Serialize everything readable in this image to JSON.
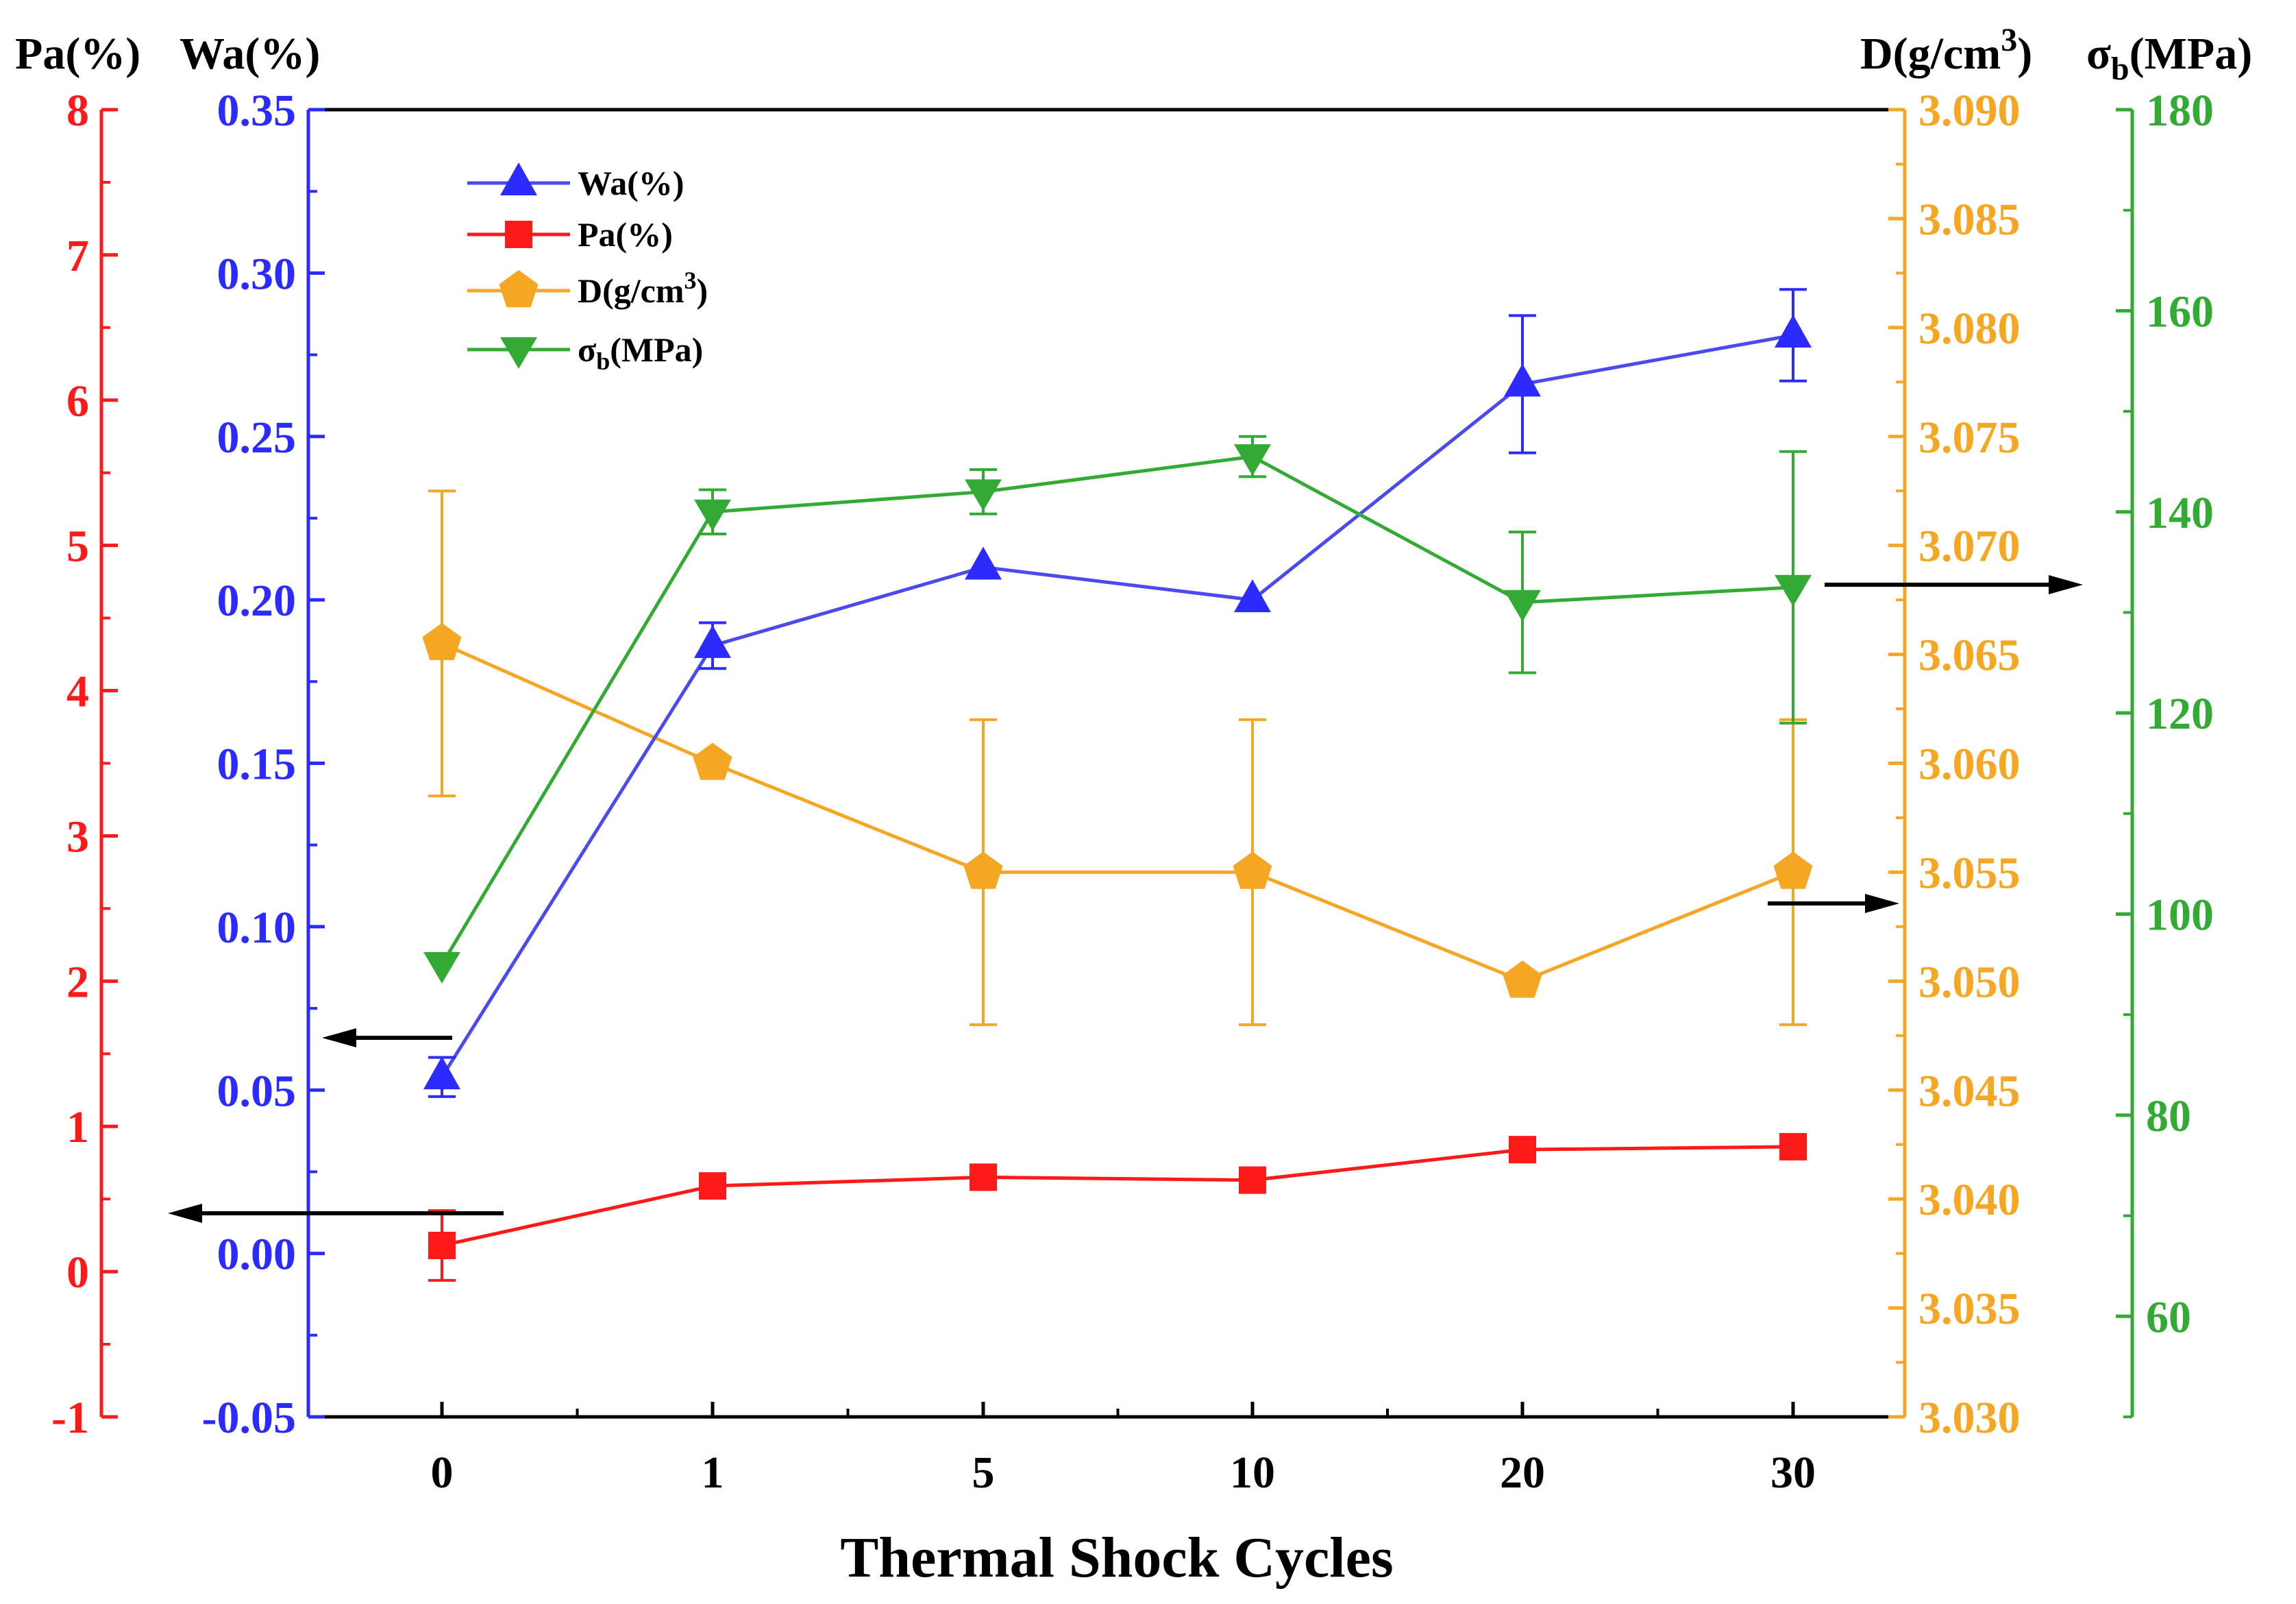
{
  "chart_data": {
    "type": "line",
    "xlabel": "Thermal Shock Cycles",
    "categories": [
      "0",
      "1",
      "5",
      "10",
      "20",
      "30"
    ],
    "colors": {
      "pa": "#ff1a1a",
      "wa": "#2b2bff",
      "d": "#f5a623",
      "sigma": "#33aa33",
      "wa_line": "#4a4af0",
      "axis": "#000000"
    },
    "axes": {
      "pa": {
        "header": "Pa(%)",
        "side": "left-outer",
        "ylim": [
          -1,
          8
        ],
        "ticks": [
          "-1",
          "0",
          "1",
          "2",
          "3",
          "4",
          "5",
          "6",
          "7",
          "8"
        ]
      },
      "wa": {
        "header": "Wa(%)",
        "side": "left-inner",
        "ylim": [
          -0.05,
          0.35
        ],
        "ticks": [
          "-0.05",
          "0.00",
          "0.05",
          "0.10",
          "0.15",
          "0.20",
          "0.25",
          "0.30",
          "0.35"
        ]
      },
      "d": {
        "header_base": "D(g/cm",
        "header_sup": "3",
        "header_tail": ")",
        "side": "right-inner",
        "ylim": [
          3.03,
          3.09
        ],
        "ticks": [
          "3.030",
          "3.035",
          "3.040",
          "3.045",
          "3.050",
          "3.055",
          "3.060",
          "3.065",
          "3.070",
          "3.075",
          "3.080",
          "3.085",
          "3.090"
        ]
      },
      "sigma": {
        "header_base": "σ",
        "header_sub": "b",
        "header_tail": "(MPa)",
        "side": "right-outer",
        "ylim": [
          50,
          180
        ],
        "ticks": [
          "60",
          "80",
          "100",
          "120",
          "140",
          "160",
          "180"
        ]
      }
    },
    "series": [
      {
        "key": "wa",
        "name": "Wa(%)",
        "legend_base": "Wa(%)",
        "axis": "wa",
        "marker": "triangle-up",
        "values": [
          0.054,
          0.186,
          0.21,
          0.2,
          0.266,
          0.281
        ],
        "errors": [
          0.006,
          0.007,
          0,
          0,
          0.021,
          0.014
        ]
      },
      {
        "key": "pa",
        "name": "Pa(%)",
        "legend_base": "Pa(%)",
        "axis": "pa",
        "marker": "square",
        "values": [
          0.18,
          0.59,
          0.65,
          0.63,
          0.84,
          0.86
        ],
        "errors": [
          0.24,
          0.05,
          0.04,
          0.03,
          0.06,
          0.05
        ]
      },
      {
        "key": "d",
        "name": "D(g/cm3)",
        "legend_base": "D(g/cm",
        "legend_sup": "3",
        "legend_tail": ")",
        "axis": "d",
        "marker": "pentagon",
        "values": [
          3.0655,
          3.06,
          3.055,
          3.055,
          3.05,
          3.055
        ],
        "errors": [
          0.007,
          0,
          0.007,
          0.007,
          0,
          0.007
        ]
      },
      {
        "key": "sigma",
        "name": "σb(MPa)",
        "legend_base": "σ",
        "legend_sub": "b",
        "legend_tail": "(MPa)",
        "axis": "sigma",
        "marker": "triangle-down",
        "values": [
          95,
          140,
          142,
          145.5,
          131,
          132.5
        ],
        "errors": [
          0,
          2.2,
          2.2,
          2.0,
          7,
          13.5
        ]
      }
    ],
    "annotations": [
      "arrow-to-Wa-axis",
      "arrow-to-Pa-axis",
      "arrow-to-σb-axis",
      "arrow-to-D-axis"
    ],
    "legend_position": "top-left"
  }
}
